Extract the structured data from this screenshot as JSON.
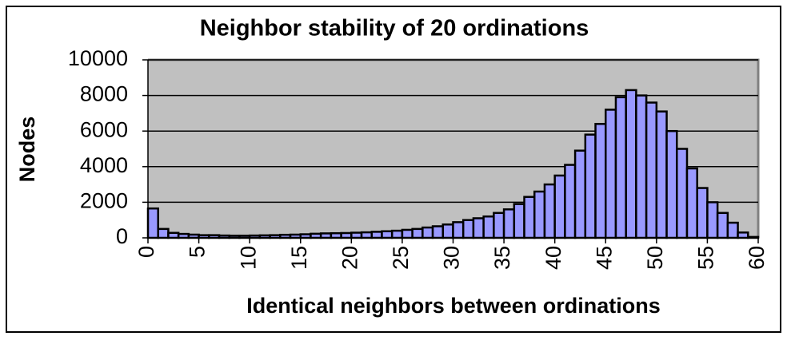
{
  "chart_data": {
    "type": "histogram",
    "title": "Neighbor stability of 20 ordinations",
    "x_label": "Identical neighbors between ordinations",
    "y_label": "Nodes",
    "bins": [
      0,
      1,
      2,
      3,
      4,
      5,
      6,
      7,
      8,
      9,
      10,
      11,
      12,
      13,
      14,
      15,
      16,
      17,
      18,
      19,
      20,
      21,
      22,
      23,
      24,
      25,
      26,
      27,
      28,
      29,
      30,
      31,
      32,
      33,
      34,
      35,
      36,
      37,
      38,
      39,
      40,
      41,
      42,
      43,
      44,
      45,
      46,
      47,
      48,
      49,
      50,
      51,
      52,
      53,
      54,
      55,
      56,
      57,
      58,
      59,
      60
    ],
    "values": [
      1650,
      500,
      280,
      220,
      180,
      150,
      150,
      130,
      120,
      120,
      130,
      140,
      150,
      170,
      180,
      200,
      230,
      250,
      260,
      270,
      290,
      310,
      340,
      370,
      400,
      450,
      500,
      580,
      650,
      750,
      880,
      1000,
      1100,
      1200,
      1400,
      1600,
      1900,
      2300,
      2600,
      3000,
      3500,
      4100,
      4900,
      5800,
      6400,
      7200,
      7900,
      8300,
      8000,
      7600,
      7100,
      6000,
      5000,
      3900,
      2800,
      2000,
      1400,
      850,
      300,
      50
    ],
    "color": "#9999ff",
    "xlim": [
      0,
      60
    ],
    "xticks": [
      0,
      5,
      10,
      15,
      20,
      25,
      30,
      35,
      40,
      45,
      50,
      55,
      60
    ],
    "ylim": [
      0,
      10000
    ],
    "yticks": [
      0,
      2000,
      4000,
      6000,
      8000,
      10000
    ],
    "grid": true
  }
}
